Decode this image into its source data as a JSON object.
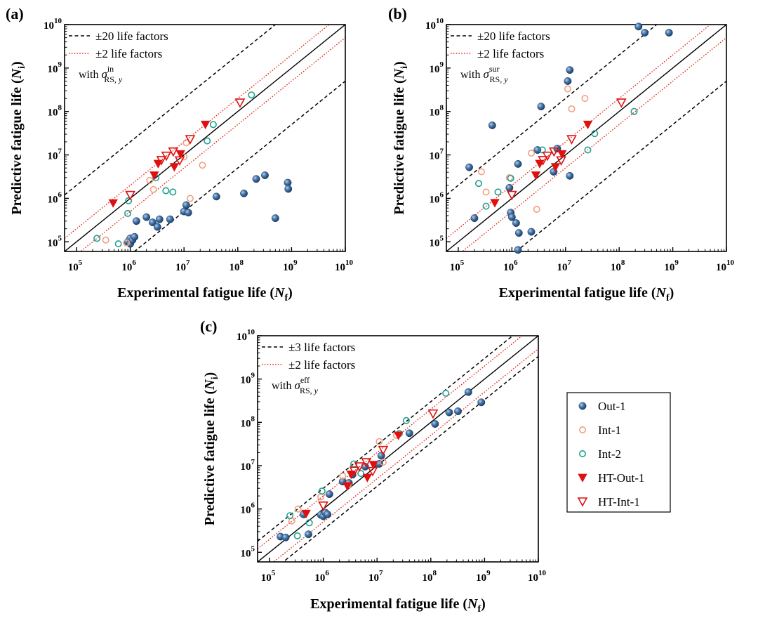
{
  "colors": {
    "out1": "#3a6aa0",
    "int1": "#f0a080",
    "int2": "#20a090",
    "ht": "#e01010",
    "band_outer": "#000000",
    "band_inner": "#e03020"
  },
  "legend_shared": {
    "items": [
      {
        "key": "out1",
        "label": "Out-1",
        "marker": "ball"
      },
      {
        "key": "int1",
        "label": "Int-1",
        "marker": "open-circle"
      },
      {
        "key": "int2",
        "label": "Int-2",
        "marker": "open-circle"
      },
      {
        "key": "htout1",
        "label": "HT-Out-1",
        "marker": "filled-triangle-down"
      },
      {
        "key": "htint1",
        "label": "HT-Int-1",
        "marker": "open-triangle-down"
      }
    ]
  },
  "chart_data": [
    {
      "panel_label": "(a)",
      "type": "scatter",
      "xlabel": "Experimental fatigue life (N_f)",
      "ylabel": "Predictive fatigue life (N_i)",
      "xscale": "log",
      "yscale": "log",
      "xlim": [
        60000,
        10000000000
      ],
      "ylim": [
        60000,
        10000000000
      ],
      "x_ticks": [
        "10^5",
        "10^6",
        "10^7",
        "10^8",
        "10^9",
        "10^10"
      ],
      "y_ticks": [
        "10^5",
        "10^6",
        "10^7",
        "10^8",
        "10^9",
        "10^10"
      ],
      "legend": {
        "outer": "±20 life factors",
        "inner": "±2 life factors",
        "note_prefix": "with",
        "note_symbol": "σ",
        "note_sup": "in",
        "note_sub": "RS,",
        "note_sub2": "y",
        "placement": "top-left"
      },
      "bands": {
        "outer_factor": 20,
        "inner_factor": 2
      },
      "series": [
        {
          "name": "Out-1",
          "points": [
            [
              900000,
              100000
            ],
            [
              1000000,
              90000
            ],
            [
              1000000,
              120000
            ],
            [
              1100000,
              110000
            ],
            [
              1200000,
              130000
            ],
            [
              1300000,
              300000
            ],
            [
              2000000,
              370000
            ],
            [
              2600000,
              280000
            ],
            [
              3200000,
              220000
            ],
            [
              3500000,
              330000
            ],
            [
              5500000,
              330000
            ],
            [
              10000000,
              500000
            ],
            [
              11000000,
              700000
            ],
            [
              12000000,
              470000
            ],
            [
              40000000,
              1100000
            ],
            [
              130000000,
              1300000
            ],
            [
              220000000,
              2800000
            ],
            [
              320000000,
              3400000
            ],
            [
              500000000,
              350000
            ],
            [
              850000000,
              2300000
            ],
            [
              870000000,
              1650000
            ]
          ]
        },
        {
          "name": "Int-1",
          "points": [
            [
              350000,
              110000
            ],
            [
              850000,
              95000
            ],
            [
              2300000,
              2600000
            ],
            [
              2700000,
              1600000
            ],
            [
              10000000,
              9000000
            ],
            [
              11000000,
              19000000
            ],
            [
              13000000,
              1000000
            ],
            [
              22000000,
              5800000
            ]
          ]
        },
        {
          "name": "Int-2",
          "points": [
            [
              240000,
              120000
            ],
            [
              600000,
              90000
            ],
            [
              900000,
              450000
            ],
            [
              930000,
              880000
            ],
            [
              3000000,
              3000000
            ],
            [
              4600000,
              1500000
            ],
            [
              6200000,
              1400000
            ],
            [
              27000000,
              21000000
            ],
            [
              35000000,
              50000000
            ],
            [
              180000000,
              240000000
            ]
          ]
        },
        {
          "name": "HT-Out-1",
          "points": [
            [
              480000,
              780000
            ],
            [
              2800000,
              3400000
            ],
            [
              3300000,
              6300000
            ],
            [
              6600000,
              5300000
            ],
            [
              8600000,
              10500000
            ],
            [
              25000000,
              50000000
            ]
          ]
        },
        {
          "name": "HT-Int-1",
          "points": [
            [
              1000000,
              1200000
            ],
            [
              3800000,
              7600000
            ],
            [
              4700000,
              9600000
            ],
            [
              6300000,
              12000000
            ],
            [
              8300000,
              7500000
            ],
            [
              13000000,
              23000000
            ],
            [
              110000000,
              160000000
            ]
          ]
        }
      ]
    },
    {
      "panel_label": "(b)",
      "type": "scatter",
      "xlabel": "Experimental fatigue life (N_f)",
      "ylabel": "Predictive fatigue life (N_i)",
      "xscale": "log",
      "yscale": "log",
      "xlim": [
        60000,
        10000000000
      ],
      "ylim": [
        60000,
        10000000000
      ],
      "x_ticks": [
        "10^5",
        "10^6",
        "10^7",
        "10^8",
        "10^9",
        "10^10"
      ],
      "y_ticks": [
        "10^5",
        "10^6",
        "10^7",
        "10^8",
        "10^9",
        "10^10"
      ],
      "legend": {
        "outer": "±20 life factors",
        "inner": "±2 life factors",
        "note_prefix": "with",
        "note_symbol": "σ",
        "note_sup": "sur",
        "note_sub": "RS,",
        "note_sub2": "y",
        "placement": "top-left"
      },
      "bands": {
        "outer_factor": 20,
        "inner_factor": 2
      },
      "series": [
        {
          "name": "Out-1",
          "points": [
            [
              160000,
              5200000
            ],
            [
              200000,
              350000
            ],
            [
              430000,
              48000000
            ],
            [
              900000,
              1750000
            ],
            [
              950000,
              470000
            ],
            [
              1000000,
              370000
            ],
            [
              1200000,
              270000
            ],
            [
              1300000,
              6200000
            ],
            [
              1300000,
              65000
            ],
            [
              1350000,
              160000
            ],
            [
              2300000,
              170000
            ],
            [
              3000000,
              13000000
            ],
            [
              3500000,
              130000000
            ],
            [
              6000000,
              4100000
            ],
            [
              7000000,
              14000000
            ],
            [
              11000000,
              500000000
            ],
            [
              12000000,
              3300000
            ],
            [
              12000000,
              900000000
            ],
            [
              230000000,
              9000000000
            ],
            [
              300000000,
              6500000000
            ],
            [
              850000000,
              6500000000
            ]
          ]
        },
        {
          "name": "Int-1",
          "points": [
            [
              270000,
              4100000
            ],
            [
              330000,
              1400000
            ],
            [
              900000,
              3000000
            ],
            [
              2300000,
              11000000
            ],
            [
              2900000,
              560000
            ],
            [
              11000000,
              330000000
            ],
            [
              13000000,
              115000000
            ],
            [
              23000000,
              200000000
            ]
          ]
        },
        {
          "name": "Int-2",
          "points": [
            [
              240000,
              2200000
            ],
            [
              330000,
              660000
            ],
            [
              550000,
              1400000
            ],
            [
              950000,
              2900000
            ],
            [
              3700000,
              13000000
            ],
            [
              26000000,
              13000000
            ],
            [
              35000000,
              31000000
            ],
            [
              190000000,
              100000000
            ]
          ]
        },
        {
          "name": "HT-Out-1",
          "points": [
            [
              480000,
              790000
            ],
            [
              2800000,
              3400000
            ],
            [
              3300000,
              6300000
            ],
            [
              6500000,
              5300000
            ],
            [
              8600000,
              10500000
            ],
            [
              26000000,
              50000000
            ]
          ]
        },
        {
          "name": "HT-Int-1",
          "points": [
            [
              1000000,
              1200000
            ],
            [
              3800000,
              7600000
            ],
            [
              4600000,
              9600000
            ],
            [
              6100000,
              12000000
            ],
            [
              8300000,
              7500000
            ],
            [
              13000000,
              23000000
            ],
            [
              110000000,
              160000000
            ]
          ]
        }
      ]
    },
    {
      "panel_label": "(c)",
      "type": "scatter",
      "xlabel": "Experimental fatigue life (N_f)",
      "ylabel": "Predictive fatigue life (N_i)",
      "xscale": "log",
      "yscale": "log",
      "xlim": [
        60000,
        10000000000
      ],
      "ylim": [
        60000,
        10000000000
      ],
      "x_ticks": [
        "10^5",
        "10^6",
        "10^7",
        "10^8",
        "10^9",
        "10^10"
      ],
      "y_ticks": [
        "10^5",
        "10^6",
        "10^7",
        "10^8",
        "10^9",
        "10^10"
      ],
      "legend": {
        "outer": "±3 life factors",
        "inner": "±2 life factors",
        "note_prefix": "with",
        "note_symbol": "σ",
        "note_sup": "eff",
        "note_sub": "RS,",
        "note_sub2": "y",
        "placement": "top-left"
      },
      "bands": {
        "outer_factor": 3,
        "inner_factor": 2
      },
      "series": [
        {
          "name": "Out-1",
          "points": [
            [
              160000,
              230000
            ],
            [
              200000,
              220000
            ],
            [
              430000,
              750000
            ],
            [
              530000,
              260000
            ],
            [
              900000,
              730000
            ],
            [
              1000000,
              680000
            ],
            [
              1100000,
              820000
            ],
            [
              1200000,
              750000
            ],
            [
              1300000,
              2200000
            ],
            [
              2300000,
              4300000
            ],
            [
              3000000,
              4000000
            ],
            [
              3500000,
              6200000
            ],
            [
              6000000,
              9500000
            ],
            [
              11000000,
              11000000
            ],
            [
              12000000,
              17000000
            ],
            [
              40000000,
              56000000
            ],
            [
              120000000,
              92000000
            ],
            [
              220000000,
              170000000
            ],
            [
              320000000,
              180000000
            ],
            [
              500000000,
              500000000
            ],
            [
              870000000,
              290000000
            ]
          ]
        },
        {
          "name": "Int-1",
          "points": [
            [
              260000,
              530000
            ],
            [
              340000,
              1000000
            ],
            [
              900000,
              1900000
            ],
            [
              2300000,
              5800000
            ],
            [
              2900000,
              3600000
            ],
            [
              11000000,
              36000000
            ],
            [
              13000000,
              12000000
            ],
            [
              23000000,
              50000000
            ]
          ]
        },
        {
          "name": "Int-2",
          "points": [
            [
              240000,
              700000
            ],
            [
              330000,
              240000
            ],
            [
              550000,
              480000
            ],
            [
              950000,
              2600000
            ],
            [
              3700000,
              11000000
            ],
            [
              5000000,
              6600000
            ],
            [
              26000000,
              55000000
            ],
            [
              35000000,
              110000000
            ],
            [
              190000000,
              470000000
            ]
          ]
        },
        {
          "name": "HT-Out-1",
          "points": [
            [
              480000,
              780000
            ],
            [
              2800000,
              3400000
            ],
            [
              3300000,
              6300000
            ],
            [
              6600000,
              5300000
            ],
            [
              8600000,
              10500000
            ],
            [
              25000000,
              50000000
            ]
          ]
        },
        {
          "name": "HT-Int-1",
          "points": [
            [
              1000000,
              1200000
            ],
            [
              3800000,
              7600000
            ],
            [
              4700000,
              9600000
            ],
            [
              6300000,
              12000000
            ],
            [
              8300000,
              7500000
            ],
            [
              13000000,
              23000000
            ],
            [
              110000000,
              160000000
            ]
          ]
        }
      ]
    }
  ]
}
